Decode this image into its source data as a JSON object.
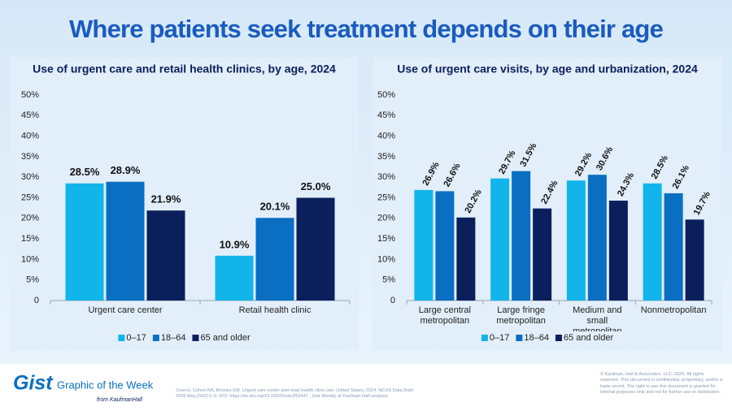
{
  "title": "Where patients seek treatment depends on their age",
  "chart_data": [
    {
      "type": "bar",
      "title": "Use of urgent care and retail health clinics, by age, 2024",
      "categories": [
        "Urgent care center",
        "Retail health clinic"
      ],
      "series": [
        {
          "name": "0–17",
          "color": "#12b5ea",
          "values": [
            28.5,
            10.9
          ],
          "value_labels": [
            "28.5%",
            "10.9%"
          ]
        },
        {
          "name": "18–64",
          "color": "#0a6fc2",
          "values": [
            28.9,
            20.1
          ],
          "value_labels": [
            "28.9%",
            "20.1%"
          ]
        },
        {
          "name": "65 and older",
          "color": "#0b1f5c",
          "values": [
            21.9,
            25.0
          ],
          "value_labels": [
            "21.9%",
            "25.0%"
          ]
        }
      ],
      "ylim": [
        0,
        50
      ],
      "yticks": [
        0,
        {
          "value": 5,
          "label": "5%"
        },
        {
          "value": 10,
          "label": "10%"
        },
        {
          "value": 15,
          "label": "15%"
        },
        {
          "value": 20,
          "label": "20%"
        },
        {
          "value": 25,
          "label": "25%"
        },
        {
          "value": 30,
          "label": "30%"
        },
        {
          "value": 35,
          "label": "35%"
        },
        {
          "value": 40,
          "label": "40%"
        },
        {
          "value": 45,
          "label": "45%"
        },
        {
          "value": 50,
          "label": "50%"
        }
      ],
      "legend": "bottom"
    },
    {
      "type": "bar",
      "title": "Use of urgent care visits, by age and urbanization, 2024",
      "categories": [
        "Large central metropolitan",
        "Large fringe metropolitan",
        "Medium and small metropolitan",
        "Nonmetropolitan"
      ],
      "series": [
        {
          "name": "0–17",
          "color": "#12b5ea",
          "values": [
            26.9,
            29.7,
            29.2,
            28.5
          ],
          "value_labels": [
            "26.9%",
            "29.7%",
            "29.2%",
            "28.5%"
          ]
        },
        {
          "name": "18–64",
          "color": "#0a6fc2",
          "values": [
            26.6,
            31.5,
            30.6,
            26.1
          ],
          "value_labels": [
            "26.6%",
            "31.5%",
            "30.6%",
            "26.1%"
          ]
        },
        {
          "name": "65 and older",
          "color": "#0b1f5c",
          "values": [
            20.2,
            22.4,
            24.3,
            19.7
          ],
          "value_labels": [
            "20.2%",
            "22.4%",
            "24.3%",
            "19.7%"
          ]
        }
      ],
      "ylim": [
        0,
        50
      ],
      "yticks": [
        0,
        {
          "value": 5,
          "label": "5%"
        },
        {
          "value": 10,
          "label": "10%"
        },
        {
          "value": 15,
          "label": "15%"
        },
        {
          "value": 20,
          "label": "20%"
        },
        {
          "value": 25,
          "label": "25%"
        },
        {
          "value": 30,
          "label": "30%"
        },
        {
          "value": 35,
          "label": "35%"
        },
        {
          "value": 40,
          "label": "40%"
        },
        {
          "value": 45,
          "label": "45%"
        },
        {
          "value": 50,
          "label": "50%"
        }
      ],
      "legend": "bottom"
    }
  ],
  "footer": {
    "brand": "Gist",
    "brand_tagline": "Graphic of the Week",
    "brand_from": "from KaufmanHall",
    "source": "Source: Cohen RA, Briones EM. Urgent care center and retail health clinic use: United States, 2024. NCHS Data Brief. 2026 May;(562):1–9. DOI: https://dx.doi.org/10.15620/cdc/252447.; Gist Weekly at Kaufman Hall analysis.",
    "copyright": "© Kaufman, Hall & Associates, LLC, 2026. All rights reserved. This document is confidential, proprietary, and/or a trade secret. The right to use this document is granted for internal purposes only and not for further use or distribution."
  }
}
